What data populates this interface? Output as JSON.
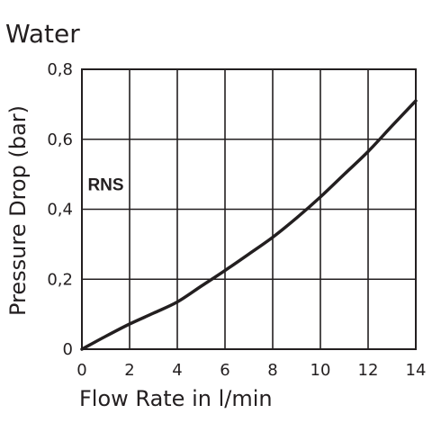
{
  "chart_data": {
    "type": "line",
    "title": "Water",
    "xlabel": "Flow Rate in l/min",
    "ylabel": "Pressure Drop (bar)",
    "xlim": [
      0,
      14
    ],
    "ylim": [
      0,
      0.8
    ],
    "x_ticks": [
      0,
      2,
      4,
      6,
      8,
      10,
      12,
      14
    ],
    "y_ticks": [
      0,
      0.2,
      0.4,
      0.6,
      0.8
    ],
    "x_tick_labels": [
      "0",
      "2",
      "4",
      "6",
      "8",
      "10",
      "12",
      "14"
    ],
    "y_tick_labels": [
      "0",
      "0,2",
      "0,4",
      "0,6",
      "0,8"
    ],
    "grid": true,
    "series": [
      {
        "name": "RNS",
        "x": [
          0,
          1,
          2,
          3,
          4,
          5,
          6,
          7,
          8,
          9,
          10,
          11,
          12,
          13,
          14
        ],
        "y": [
          0,
          0.037,
          0.072,
          0.103,
          0.135,
          0.18,
          0.225,
          0.272,
          0.32,
          0.375,
          0.435,
          0.5,
          0.565,
          0.638,
          0.71
        ]
      }
    ],
    "annotations": [
      {
        "text": "RNS",
        "x": 1.0,
        "y": 0.47
      }
    ]
  }
}
